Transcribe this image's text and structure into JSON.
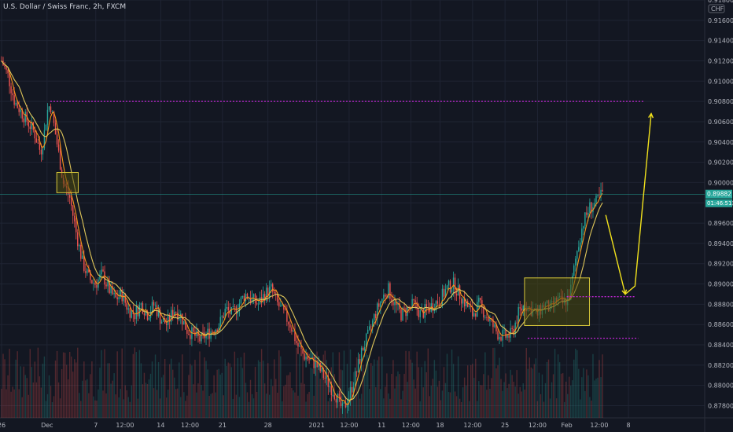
{
  "header": {
    "title": "U.S. Dollar / Swiss Franc, 2h, FXCM"
  },
  "currency_label": "CHF",
  "price_badge": "0.89882",
  "countdown_badge": "01:46:51",
  "colors": {
    "background": "#131722",
    "bull": "#26a69a",
    "bear": "#ef5350",
    "ma_fast": "#f7931a",
    "ma_slow": "#e0c75a",
    "level_line": "#c026d3",
    "arrow": "#f2e21c",
    "box_fill": "#4a4a0f",
    "box_stroke": "#d8c83a",
    "badge": "#26a69a"
  },
  "chart_data": {
    "type": "candlestick",
    "symbol": "U.S. Dollar / Swiss Franc, 2h, FXCM",
    "ylim": [
      0.8768,
      0.918
    ],
    "y_ticks": [
      "0.91800",
      "0.91600",
      "0.91400",
      "0.91200",
      "0.91000",
      "0.90800",
      "0.90600",
      "0.90400",
      "0.90200",
      "0.90000",
      "0.89800",
      "0.89600",
      "0.89400",
      "0.89200",
      "0.89000",
      "0.88800",
      "0.88600",
      "0.88400",
      "0.88200",
      "0.88000",
      "0.87800"
    ],
    "x_ticks": [
      {
        "label": "26",
        "pos": 0.0
      },
      {
        "label": "Dec",
        "pos": 0.07
      },
      {
        "label": "7",
        "pos": 0.145
      },
      {
        "label": "12:00",
        "pos": 0.19
      },
      {
        "label": "14",
        "pos": 0.245
      },
      {
        "label": "12:00",
        "pos": 0.29
      },
      {
        "label": "21",
        "pos": 0.34
      },
      {
        "label": "28",
        "pos": 0.41
      },
      {
        "label": "2021",
        "pos": 0.485
      },
      {
        "label": "12:00",
        "pos": 0.535
      },
      {
        "label": "11",
        "pos": 0.585
      },
      {
        "label": "12:00",
        "pos": 0.63
      },
      {
        "label": "18",
        "pos": 0.675
      },
      {
        "label": "12:00",
        "pos": 0.725
      },
      {
        "label": "25",
        "pos": 0.775
      },
      {
        "label": "12:00",
        "pos": 0.825
      },
      {
        "label": "Feb",
        "pos": 0.87
      },
      {
        "label": "12:00",
        "pos": 0.92
      },
      {
        "label": "8",
        "pos": 0.965
      }
    ],
    "path_points": [
      [
        0,
        0.912
      ],
      [
        0.01,
        0.9105
      ],
      [
        0.02,
        0.908
      ],
      [
        0.035,
        0.9065
      ],
      [
        0.05,
        0.905
      ],
      [
        0.06,
        0.903
      ],
      [
        0.065,
        0.9045
      ],
      [
        0.07,
        0.907
      ],
      [
        0.075,
        0.9078
      ],
      [
        0.085,
        0.904
      ],
      [
        0.095,
        0.9
      ],
      [
        0.105,
        0.8985
      ],
      [
        0.115,
        0.895
      ],
      [
        0.125,
        0.892
      ],
      [
        0.135,
        0.8905
      ],
      [
        0.145,
        0.89
      ],
      [
        0.155,
        0.891
      ],
      [
        0.165,
        0.8895
      ],
      [
        0.175,
        0.8885
      ],
      [
        0.185,
        0.889
      ],
      [
        0.195,
        0.8875
      ],
      [
        0.205,
        0.887
      ],
      [
        0.215,
        0.888
      ],
      [
        0.225,
        0.887
      ],
      [
        0.235,
        0.888
      ],
      [
        0.245,
        0.8865
      ],
      [
        0.255,
        0.886
      ],
      [
        0.265,
        0.8875
      ],
      [
        0.275,
        0.887
      ],
      [
        0.285,
        0.8855
      ],
      [
        0.295,
        0.885
      ],
      [
        0.305,
        0.8845
      ],
      [
        0.315,
        0.885
      ],
      [
        0.325,
        0.8855
      ],
      [
        0.335,
        0.886
      ],
      [
        0.345,
        0.8875
      ],
      [
        0.355,
        0.887
      ],
      [
        0.365,
        0.888
      ],
      [
        0.375,
        0.889
      ],
      [
        0.385,
        0.8885
      ],
      [
        0.395,
        0.888
      ],
      [
        0.405,
        0.889
      ],
      [
        0.415,
        0.8895
      ],
      [
        0.425,
        0.888
      ],
      [
        0.435,
        0.887
      ],
      [
        0.445,
        0.886
      ],
      [
        0.455,
        0.884
      ],
      [
        0.465,
        0.883
      ],
      [
        0.475,
        0.8825
      ],
      [
        0.485,
        0.882
      ],
      [
        0.495,
        0.881
      ],
      [
        0.505,
        0.88
      ],
      [
        0.515,
        0.879
      ],
      [
        0.525,
        0.8775
      ],
      [
        0.535,
        0.879
      ],
      [
        0.545,
        0.881
      ],
      [
        0.555,
        0.8835
      ],
      [
        0.565,
        0.885
      ],
      [
        0.575,
        0.887
      ],
      [
        0.585,
        0.8885
      ],
      [
        0.595,
        0.8895
      ],
      [
        0.605,
        0.888
      ],
      [
        0.615,
        0.887
      ],
      [
        0.625,
        0.8875
      ],
      [
        0.635,
        0.888
      ],
      [
        0.645,
        0.887
      ],
      [
        0.655,
        0.8875
      ],
      [
        0.665,
        0.888
      ],
      [
        0.675,
        0.8885
      ],
      [
        0.685,
        0.8895
      ],
      [
        0.695,
        0.89
      ],
      [
        0.705,
        0.889
      ],
      [
        0.715,
        0.888
      ],
      [
        0.725,
        0.887
      ],
      [
        0.735,
        0.888
      ],
      [
        0.745,
        0.887
      ],
      [
        0.755,
        0.886
      ],
      [
        0.765,
        0.885
      ],
      [
        0.775,
        0.8848
      ],
      [
        0.785,
        0.885
      ],
      [
        0.795,
        0.887
      ],
      [
        0.805,
        0.888
      ],
      [
        0.815,
        0.8875
      ],
      [
        0.825,
        0.887
      ],
      [
        0.835,
        0.888
      ],
      [
        0.845,
        0.8875
      ],
      [
        0.855,
        0.8885
      ],
      [
        0.865,
        0.888
      ],
      [
        0.875,
        0.889
      ],
      [
        0.885,
        0.893
      ],
      [
        0.895,
        0.896
      ],
      [
        0.905,
        0.8975
      ],
      [
        0.915,
        0.898
      ],
      [
        0.925,
        0.899
      ]
    ],
    "levels": [
      {
        "price": 0.908,
        "from": 0.075,
        "to": 0.99
      },
      {
        "price": 0.88875,
        "from": 0.87,
        "to": 0.975
      },
      {
        "price": 0.88465,
        "from": 0.81,
        "to": 0.98
      }
    ],
    "current_price": 0.89882,
    "boxes": [
      {
        "x0": 0.085,
        "x1": 0.118,
        "y0": 0.901,
        "y1": 0.899
      },
      {
        "x0": 0.805,
        "x1": 0.905,
        "y0": 0.8906,
        "y1": 0.8859
      }
    ],
    "projection": [
      [
        0.93,
        0.8968
      ],
      [
        0.96,
        0.889
      ],
      [
        0.975,
        0.8898
      ],
      [
        1.0,
        0.9068
      ]
    ],
    "x_domain": [
      0,
      1
    ]
  }
}
